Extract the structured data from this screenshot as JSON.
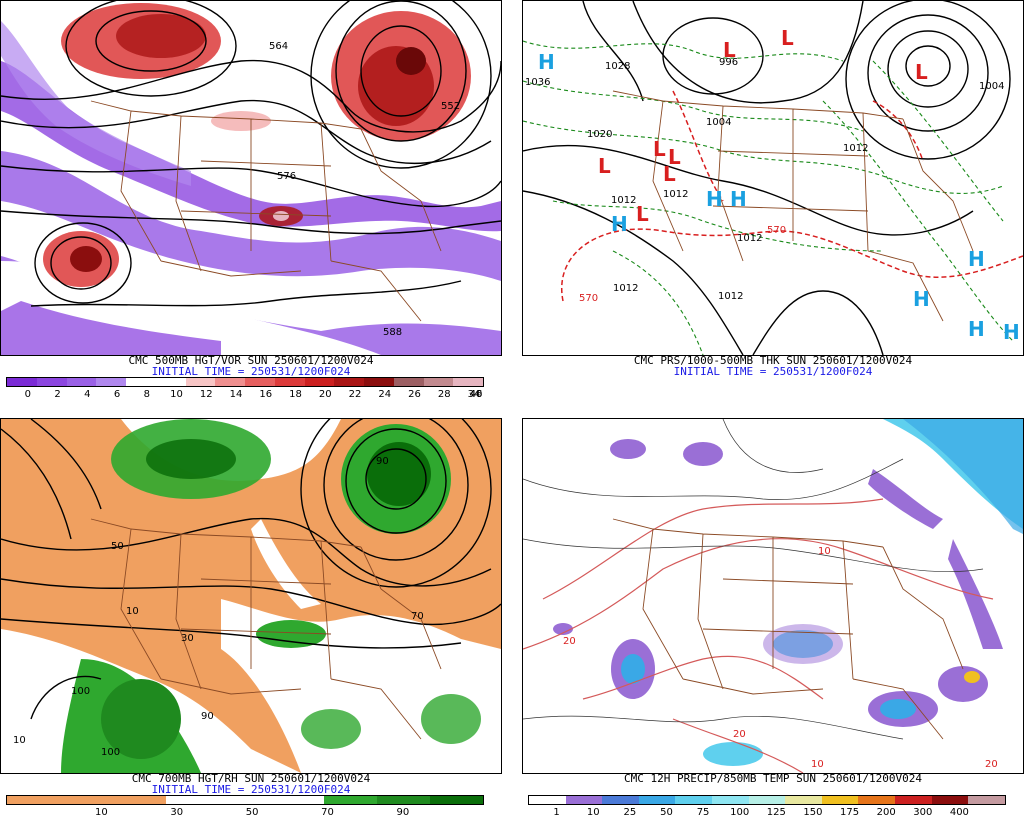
{
  "panels": [
    {
      "caption": "CMC 500MB HGT/VOR SUN 250601/1200V024",
      "initial": "INITIAL TIME = 250531/1200F024",
      "colorbar": {
        "colors": [
          "#7b2bd6",
          "#8c46e0",
          "#9a61e6",
          "#b088ee",
          "#ffffff",
          "#ffffff",
          "#f7c5c5",
          "#ef8f8f",
          "#e65f5f",
          "#dc3a3a",
          "#cc1f1f",
          "#aa1515",
          "#8b0e0e",
          "#9c5f63",
          "#c28a8f",
          "#e6b5c0"
        ],
        "ticks": [
          "0",
          "2",
          "4",
          "6",
          "8",
          "10",
          "12",
          "14",
          "16",
          "18",
          "20",
          "22",
          "24",
          "26",
          "28",
          "34",
          "40",
          "46"
        ]
      },
      "map_labels": [
        "564",
        "576",
        "588",
        "552"
      ]
    },
    {
      "caption": "CMC PRS/1000-500MB THK SUN 250601/1200V024",
      "initial": "INITIAL TIME = 250531/1200F024",
      "map_labels": [
        "1036",
        "1028",
        "996",
        "1004",
        "1020",
        "1012",
        "1012",
        "1012",
        "1012",
        "1012",
        "1012",
        "1004",
        "570",
        "570",
        "570"
      ],
      "symbols": {
        "high": "H",
        "low": "L"
      }
    },
    {
      "caption": "CMC 700MB HGT/RH SUN 250601/1200V024",
      "initial": "INITIAL TIME = 250531/1200F024",
      "colorbar": {
        "colors": [
          "#f0a060",
          "#f0a060",
          "#f0a060",
          "#ffffff",
          "#ffffff",
          "#ffffff",
          "#2fa82f",
          "#1f8a1f",
          "#0a6e0a"
        ],
        "ticks": [
          "10",
          "30",
          "50",
          "70",
          "90"
        ]
      },
      "map_labels": [
        "10",
        "50",
        "90",
        "70",
        "30",
        "100"
      ]
    },
    {
      "caption": "CMC 12H PRECIP/850MB TEMP SUN 250601/1200V024",
      "colorbar": {
        "colors": [
          "#ffffff",
          "#9a6fd6",
          "#4b7ad8",
          "#3aa8e6",
          "#5fd0ee",
          "#8ee6f2",
          "#b6efe6",
          "#e8e8a0",
          "#f0c020",
          "#e6741a",
          "#cc2020",
          "#8b0e0e",
          "#c49aa0"
        ],
        "ticks": [
          "1",
          "10",
          "25",
          "50",
          "75",
          "100",
          "125",
          "150",
          "175",
          "200",
          "300",
          "400"
        ]
      },
      "map_labels": [
        "20",
        "20",
        "10",
        "10",
        "20"
      ]
    }
  ]
}
